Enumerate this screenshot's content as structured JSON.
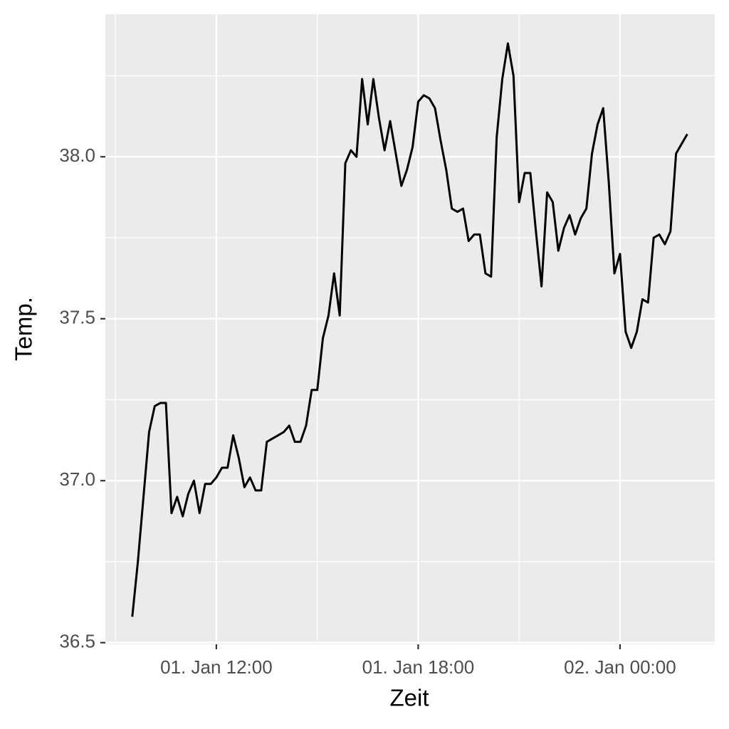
{
  "chart_data": {
    "type": "line",
    "x_label": "Zeit",
    "y_label": "Temp.",
    "x": [
      "01. Jan 09:30",
      "01. Jan 09:40",
      "01. Jan 09:50",
      "01. Jan 10:00",
      "01. Jan 10:10",
      "01. Jan 10:20",
      "01. Jan 10:30",
      "01. Jan 10:40",
      "01. Jan 10:50",
      "01. Jan 11:00",
      "01. Jan 11:10",
      "01. Jan 11:20",
      "01. Jan 11:30",
      "01. Jan 11:40",
      "01. Jan 11:50",
      "01. Jan 12:00",
      "01. Jan 12:10",
      "01. Jan 12:20",
      "01. Jan 12:30",
      "01. Jan 12:40",
      "01. Jan 12:50",
      "01. Jan 13:00",
      "01. Jan 13:10",
      "01. Jan 13:20",
      "01. Jan 13:30",
      "01. Jan 13:40",
      "01. Jan 13:50",
      "01. Jan 14:00",
      "01. Jan 14:10",
      "01. Jan 14:20",
      "01. Jan 14:30",
      "01. Jan 14:40",
      "01. Jan 14:50",
      "01. Jan 15:00",
      "01. Jan 15:10",
      "01. Jan 15:20",
      "01. Jan 15:30",
      "01. Jan 15:40",
      "01. Jan 15:50",
      "01. Jan 16:00",
      "01. Jan 16:10",
      "01. Jan 16:20",
      "01. Jan 16:30",
      "01. Jan 16:40",
      "01. Jan 16:50",
      "01. Jan 17:00",
      "01. Jan 17:10",
      "01. Jan 17:20",
      "01. Jan 17:30",
      "01. Jan 17:40",
      "01. Jan 17:50",
      "01. Jan 18:00",
      "01. Jan 18:10",
      "01. Jan 18:20",
      "01. Jan 18:30",
      "01. Jan 18:40",
      "01. Jan 18:50",
      "01. Jan 19:00",
      "01. Jan 19:10",
      "01. Jan 19:20",
      "01. Jan 19:30",
      "01. Jan 19:40",
      "01. Jan 19:50",
      "01. Jan 20:00",
      "01. Jan 20:10",
      "01. Jan 20:20",
      "01. Jan 20:30",
      "01. Jan 20:40",
      "01. Jan 20:50",
      "01. Jan 21:00",
      "01. Jan 21:10",
      "01. Jan 21:20",
      "01. Jan 21:30",
      "01. Jan 21:40",
      "01. Jan 21:50",
      "01. Jan 22:00",
      "01. Jan 22:10",
      "01. Jan 22:20",
      "01. Jan 22:30",
      "01. Jan 22:40",
      "01. Jan 22:50",
      "01. Jan 23:00",
      "01. Jan 23:10",
      "01. Jan 23:20",
      "01. Jan 23:30",
      "01. Jan 23:40",
      "01. Jan 23:50",
      "02. Jan 00:00",
      "02. Jan 00:10",
      "02. Jan 00:20",
      "02. Jan 00:30",
      "02. Jan 00:40",
      "02. Jan 00:50",
      "02. Jan 01:00",
      "02. Jan 01:10",
      "02. Jan 01:20",
      "02. Jan 01:30",
      "02. Jan 01:40",
      "02. Jan 01:50",
      "02. Jan 02:00"
    ],
    "values": [
      36.58,
      36.75,
      36.95,
      37.15,
      37.23,
      37.24,
      37.24,
      36.9,
      36.95,
      36.89,
      36.96,
      37.0,
      36.9,
      36.99,
      36.99,
      37.01,
      37.04,
      37.04,
      37.14,
      37.07,
      36.98,
      37.01,
      36.97,
      36.97,
      37.12,
      37.13,
      37.14,
      37.15,
      37.17,
      37.12,
      37.12,
      37.17,
      37.28,
      37.28,
      37.44,
      37.51,
      37.64,
      37.51,
      37.98,
      38.02,
      38.0,
      38.24,
      38.1,
      38.24,
      38.12,
      38.02,
      38.11,
      38.01,
      37.91,
      37.96,
      38.03,
      38.17,
      38.19,
      38.18,
      38.15,
      38.05,
      37.96,
      37.84,
      37.83,
      37.84,
      37.74,
      37.76,
      37.76,
      37.64,
      37.63,
      38.06,
      38.24,
      38.35,
      38.25,
      37.86,
      37.95,
      37.95,
      37.77,
      37.6,
      37.89,
      37.86,
      37.71,
      37.78,
      37.82,
      37.76,
      37.81,
      37.84,
      38.01,
      38.1,
      38.15,
      37.92,
      37.64,
      37.7,
      37.46,
      37.41,
      37.46,
      37.56,
      37.55,
      37.75,
      37.76,
      37.73,
      37.77,
      38.01,
      38.04,
      38.07
    ],
    "color": "#000000",
    "xlim": [
      "01. Jan 08:42",
      "02. Jan 02:49"
    ],
    "xticks": [
      "01. Jan 12:00",
      "01. Jan 18:00",
      "02. Jan 00:00"
    ],
    "xminor": [
      "01. Jan 09:00",
      "01. Jan 15:00",
      "01. Jan 21:00"
    ],
    "ylim": [
      36.495,
      38.44
    ],
    "yticks": [
      36.5,
      {
        "value": 37,
        "label": "37.0"
      },
      37.5,
      {
        "value": 38,
        "label": "38.0"
      }
    ],
    "yminor": [
      36.75,
      37.25,
      37.75,
      38.25
    ],
    "grid": true
  }
}
